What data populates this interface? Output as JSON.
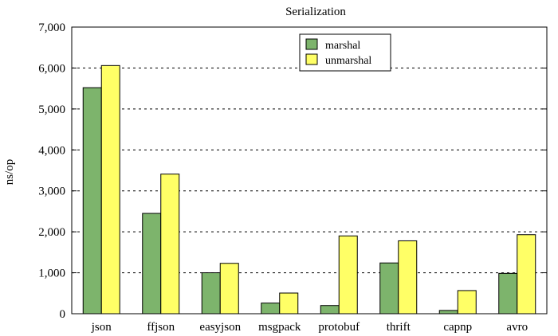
{
  "chart_data": {
    "type": "bar",
    "title": "Serialization",
    "xlabel": "",
    "ylabel": "ns/op",
    "categories": [
      "json",
      "ffjson",
      "easyjson",
      "msgpack",
      "protobuf",
      "thrift",
      "capnp",
      "avro"
    ],
    "series": [
      {
        "name": "marshal",
        "color": "#7db46c",
        "values": [
          5520,
          2450,
          1000,
          260,
          200,
          1240,
          80,
          985
        ]
      },
      {
        "name": "unmarshal",
        "color": "#ffff66",
        "values": [
          6060,
          3410,
          1230,
          505,
          1900,
          1780,
          565,
          1930
        ]
      }
    ],
    "ylim": [
      0,
      7000
    ],
    "yticks": [
      0,
      1000,
      2000,
      3000,
      4000,
      5000,
      6000,
      7000
    ],
    "ytick_labels": [
      "0",
      "1,000",
      "2,000",
      "3,000",
      "4,000",
      "5,000",
      "6,000",
      "7,000"
    ],
    "grid": "horizontal dashed",
    "legend_position": "top-center"
  }
}
